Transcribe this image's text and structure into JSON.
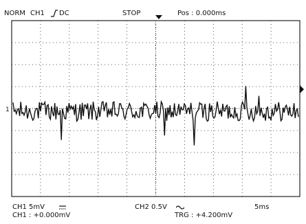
{
  "header": {
    "mode": "NORM",
    "channel": "CH1",
    "trigger_slope_icon": "rising-edge-icon",
    "coupling": "DC",
    "run_state": "STOP",
    "position": "Pos : 0.000ms"
  },
  "footer": {
    "ch1_scale": "CH1 5mV",
    "ch1_coupling_icon": "dc-coupling-icon",
    "ch1_offset": "CH1 : +0.000mV",
    "ch2_scale": "CH2 0.5V",
    "ch2_coupling_icon": "ac-coupling-icon",
    "timebase": "5ms",
    "trigger_level": "TRG : +4.200mV"
  },
  "markers": {
    "ch1_ground": "1"
  },
  "waveform": {
    "name": "ch1-noise-trace",
    "color": "#111111",
    "baseline_div": 0,
    "noise_amplitude_div": 0.45,
    "spikes_div": [
      {
        "t": 0.17,
        "v": -1.3
      },
      {
        "t": 0.53,
        "v": -1.1
      },
      {
        "t": 0.635,
        "v": -1.55
      },
      {
        "t": 0.815,
        "v": 1.15
      },
      {
        "t": 0.86,
        "v": 0.7
      }
    ]
  },
  "grid": {
    "divisions_x": 10,
    "divisions_y": 8,
    "color": "#222222"
  }
}
